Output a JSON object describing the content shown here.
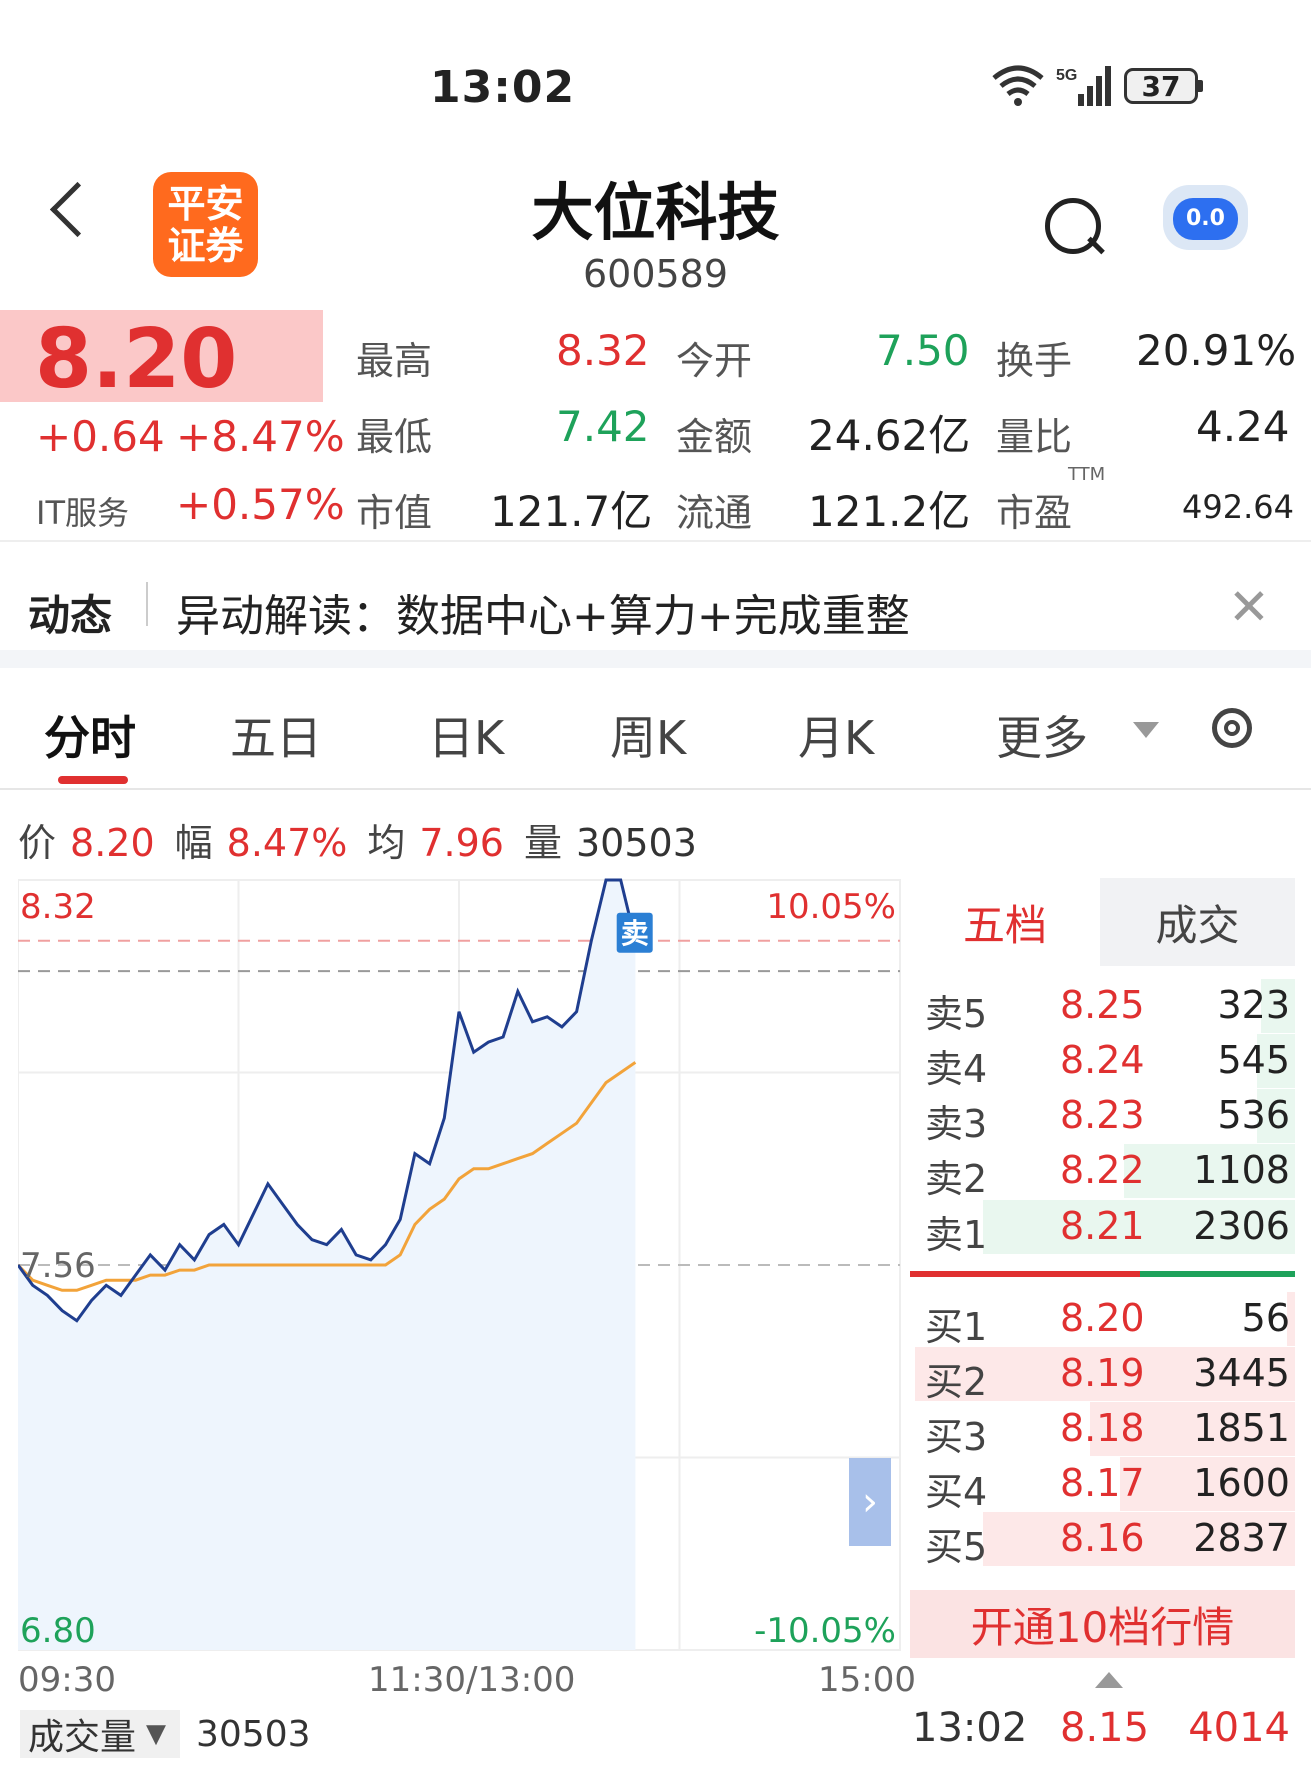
{
  "status": {
    "time": "13:02",
    "battery": "37",
    "network": "5G"
  },
  "header": {
    "logo_line1": "平安",
    "logo_line2": "证券",
    "stock_name": "大位科技",
    "stock_code": "600589",
    "bot_face": "0.0"
  },
  "quote": {
    "price": "8.20",
    "change": "+0.64",
    "change_pct": "+8.47%",
    "sector": "IT服务",
    "sector_pct": "+0.57%",
    "high_label": "最高",
    "high": "8.32",
    "open_label": "今开",
    "open": "7.50",
    "turnover_label": "换手",
    "turnover": "20.91%",
    "low_label": "最低",
    "low": "7.42",
    "amount_label": "金额",
    "amount": "24.62亿",
    "vol_ratio_label": "量比",
    "vol_ratio": "4.24",
    "mcap_label": "市值",
    "mcap": "121.7亿",
    "float_label": "流通",
    "float": "121.2亿",
    "pe_label": "市盈",
    "pe_tag": "TTM",
    "pe": "492.64"
  },
  "news": {
    "tag": "动态",
    "text": "异动解读：数据中心+算力+完成重整"
  },
  "tabs": [
    "分时",
    "五日",
    "日K",
    "周K",
    "月K",
    "更多"
  ],
  "info": {
    "price_label": "价",
    "price": "8.20",
    "amp_label": "幅",
    "amp": "8.47%",
    "avg_label": "均",
    "avg": "7.96",
    "vol_label": "量",
    "vol": "30503"
  },
  "chart_data": {
    "type": "line",
    "y_ticks_left": [
      "8.32",
      "7.56",
      "6.80"
    ],
    "y_ticks_right": [
      "10.05%",
      "-10.05%"
    ],
    "x_ticks": [
      "09:30",
      "11:30/13:00",
      "15:00"
    ],
    "ylim": [
      6.8,
      8.32
    ],
    "prev_close": 7.56,
    "sell_marker": "卖",
    "series": [
      {
        "values": [
          7.56,
          7.52,
          7.5,
          7.47,
          7.45,
          7.49,
          7.52,
          7.5,
          7.54,
          7.58,
          7.55,
          7.6,
          7.57,
          7.62,
          7.64,
          7.6,
          7.66,
          7.72,
          7.68,
          7.64,
          7.61,
          7.6,
          7.63,
          7.58,
          7.57,
          7.6,
          7.65,
          7.78,
          7.76,
          7.85,
          8.06,
          7.98,
          8.0,
          8.01,
          8.1,
          8.04,
          8.05,
          8.03,
          8.06,
          8.2,
          8.32,
          8.32,
          8.2
        ]
      },
      {
        "values": [
          7.56,
          7.53,
          7.52,
          7.51,
          7.51,
          7.52,
          7.53,
          7.53,
          7.53,
          7.54,
          7.54,
          7.55,
          7.55,
          7.56,
          7.56,
          7.56,
          7.56,
          7.56,
          7.56,
          7.56,
          7.56,
          7.56,
          7.56,
          7.56,
          7.56,
          7.56,
          7.58,
          7.64,
          7.67,
          7.69,
          7.73,
          7.75,
          7.75,
          7.76,
          7.77,
          7.78,
          7.8,
          7.82,
          7.84,
          7.88,
          7.92,
          7.94,
          7.96
        ]
      }
    ]
  },
  "order_book": {
    "tab_active": "五档",
    "tab_other": "成交",
    "asks": [
      {
        "label": "卖5",
        "price": "8.25",
        "vol": "323",
        "bar": 0.09
      },
      {
        "label": "卖4",
        "price": "8.24",
        "vol": "545",
        "bar": 0.1
      },
      {
        "label": "卖3",
        "price": "8.23",
        "vol": "536",
        "bar": 0.1
      },
      {
        "label": "卖2",
        "price": "8.22",
        "vol": "1108",
        "bar": 0.45
      },
      {
        "label": "卖1",
        "price": "8.21",
        "vol": "2306",
        "bar": 0.82
      }
    ],
    "bids": [
      {
        "label": "买1",
        "price": "8.20",
        "vol": "56",
        "bar": 0.02
      },
      {
        "label": "买2",
        "price": "8.19",
        "vol": "3445",
        "bar": 1.0
      },
      {
        "label": "买3",
        "price": "8.18",
        "vol": "1851",
        "bar": 0.54
      },
      {
        "label": "买4",
        "price": "8.17",
        "vol": "1600",
        "bar": 0.46
      },
      {
        "label": "买5",
        "price": "8.16",
        "vol": "2837",
        "bar": 0.82
      }
    ],
    "open10": "开通10档行情",
    "last_trade": {
      "time": "13:02",
      "price": "8.15",
      "vol": "4014"
    }
  },
  "volume": {
    "selector": "成交量",
    "value": "30503"
  },
  "colors": {
    "up": "#e03030",
    "down": "#1ea25a",
    "price_line": "#1f3e8f",
    "avg_line": "#f2a33a"
  }
}
